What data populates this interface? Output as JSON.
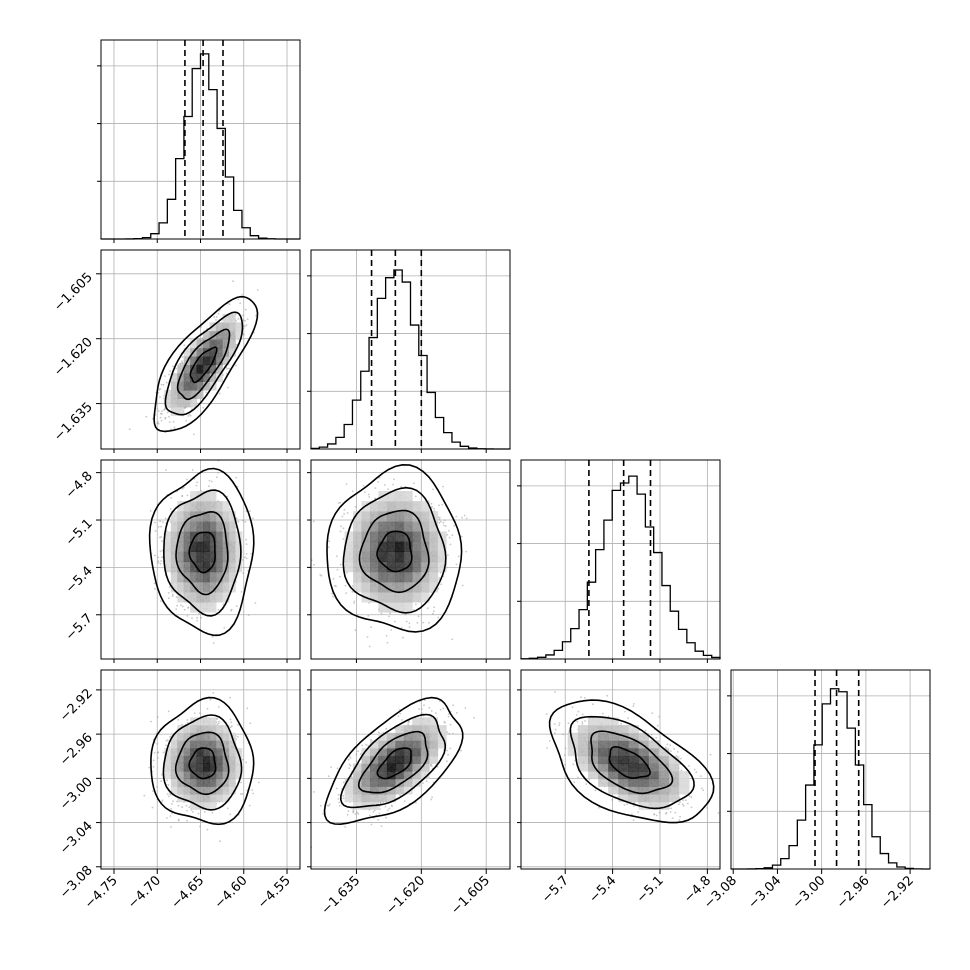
{
  "chart_data": {
    "type": "corner",
    "grid": true,
    "style": {
      "accent": "#000000",
      "grid": "#b0b0b0",
      "scatter": "#9a9a9a"
    },
    "params": [
      {
        "range": [
          -4.765,
          -4.535
        ],
        "ticks": [
          "-4.75",
          "-4.70",
          "-4.65",
          "-4.60",
          "-4.55"
        ],
        "tick_values": [
          -4.75,
          -4.7,
          -4.65,
          -4.6,
          -4.55
        ],
        "quantiles": [
          -4.668,
          -4.647,
          -4.624
        ],
        "median": -4.647,
        "sigma": 0.021
      },
      {
        "range": [
          -1.6455,
          -1.5995
        ],
        "ticks": [
          "-1.635",
          "-1.620",
          "-1.605"
        ],
        "tick_values": [
          -1.635,
          -1.62,
          -1.605
        ],
        "quantiles": [
          -1.6315,
          -1.626,
          -1.62
        ],
        "median": -1.626,
        "sigma": 0.0055
      },
      {
        "range": [
          -5.98,
          -4.72
        ],
        "ticks": [
          "-5.7",
          "-5.4",
          "-5.1",
          "-4.8"
        ],
        "tick_values": [
          -5.7,
          -5.4,
          -5.1,
          -4.8
        ],
        "quantiles": [
          -5.55,
          -5.33,
          -5.16
        ],
        "median": -5.3,
        "sigma": 0.18
      },
      {
        "range": [
          -3.082,
          -2.902
        ],
        "ticks": [
          "-3.08",
          "-3.04",
          "-3.00",
          "-2.96",
          "-2.92"
        ],
        "tick_values": [
          -3.08,
          -3.04,
          -3.0,
          -2.96,
          -2.92
        ],
        "quantiles": [
          -3.006,
          -2.9865,
          -2.9665
        ],
        "median": -2.9865,
        "sigma": 0.0195
      }
    ],
    "hist_y_ticks": 3,
    "correlations": {
      "1-0": 0.75,
      "2-0": 0.0,
      "2-1": 0.0,
      "3-0": 0.0,
      "3-1": 0.6,
      "3-2": -0.5
    },
    "contour_levels_sigma": [
      0.5,
      1.0,
      1.5,
      2.0
    ]
  }
}
